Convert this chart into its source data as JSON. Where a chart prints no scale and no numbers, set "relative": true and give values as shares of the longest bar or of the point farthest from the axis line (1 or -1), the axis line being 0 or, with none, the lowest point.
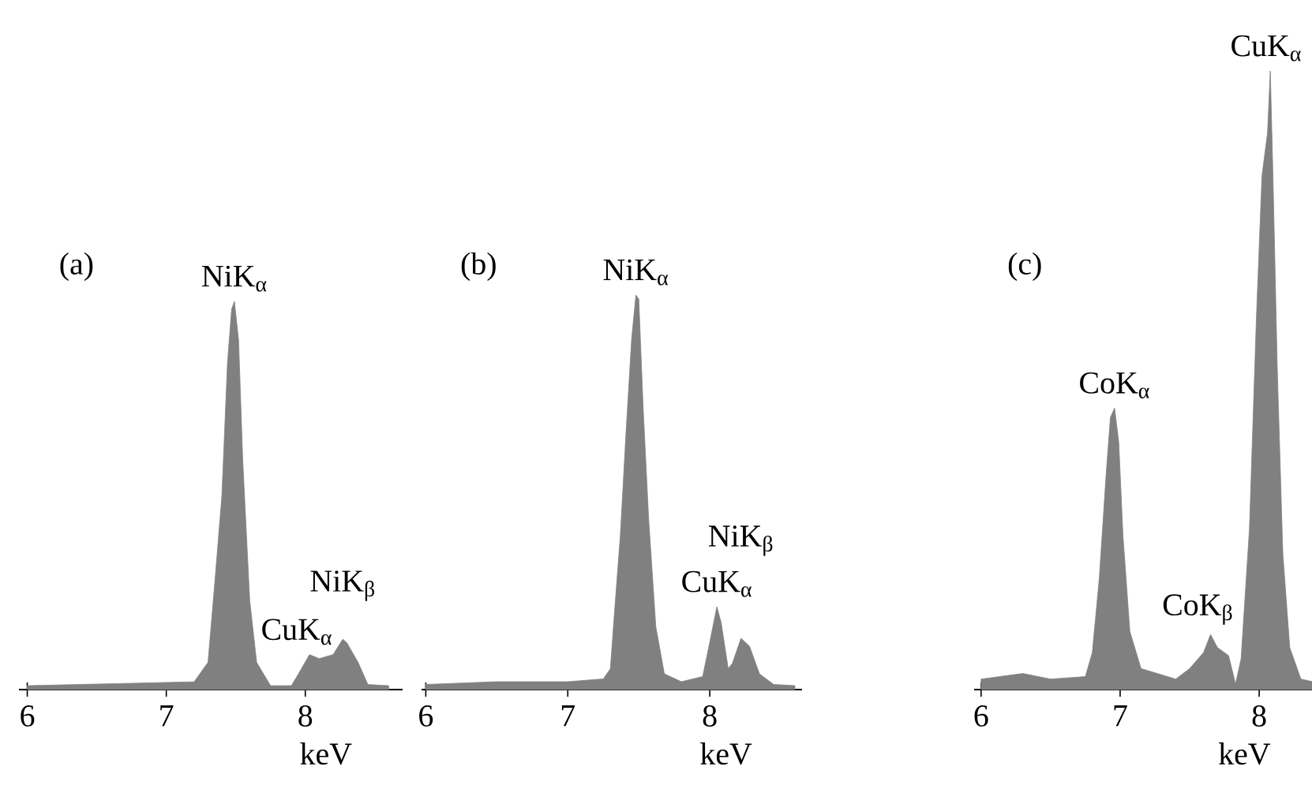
{
  "chart_data": [
    {
      "type": "area",
      "title": "(a)",
      "xlabel": "keV",
      "relative": true,
      "color": "#808080",
      "xlim": [
        5.94,
        8.7
      ],
      "xticks": [
        6,
        7,
        8
      ],
      "x": [
        6.0,
        7.2,
        7.3,
        7.35,
        7.4,
        7.44,
        7.47,
        7.49,
        7.52,
        7.55,
        7.6,
        7.65,
        7.75,
        7.9,
        7.95,
        8.03,
        8.1,
        8.2,
        8.27,
        8.3,
        8.38,
        8.45,
        8.6
      ],
      "values": [
        0.01,
        0.02,
        0.07,
        0.28,
        0.5,
        0.84,
        0.98,
        1.0,
        0.9,
        0.59,
        0.23,
        0.07,
        0.01,
        0.01,
        0.04,
        0.09,
        0.08,
        0.09,
        0.13,
        0.12,
        0.07,
        0.013,
        0.01
      ],
      "annotations": [
        {
          "text": "NiK$_{α}$",
          "x": 7.49,
          "y": 1.0
        },
        {
          "text": "CuK$_{α}$",
          "x": 8.03,
          "y": 0.09
        },
        {
          "text": "NiK$_{β}$",
          "x": 8.27,
          "y": 0.13
        }
      ]
    },
    {
      "type": "area",
      "title": "(b)",
      "xlabel": "keV",
      "relative": true,
      "color": "#808080",
      "xlim": [
        5.97,
        8.65
      ],
      "xticks": [
        6,
        7,
        8
      ],
      "x": [
        6.0,
        6.5,
        7.0,
        7.25,
        7.3,
        7.33,
        7.37,
        7.41,
        7.45,
        7.48,
        7.5,
        7.53,
        7.57,
        7.62,
        7.68,
        7.8,
        7.95,
        8.0,
        8.05,
        8.08,
        8.13,
        8.16,
        8.22,
        8.28,
        8.35,
        8.45,
        8.6
      ],
      "values": [
        0.013,
        0.02,
        0.02,
        0.027,
        0.053,
        0.2,
        0.39,
        0.65,
        0.89,
        1.0,
        0.99,
        0.72,
        0.43,
        0.16,
        0.04,
        0.02,
        0.033,
        0.12,
        0.21,
        0.17,
        0.053,
        0.067,
        0.13,
        0.11,
        0.04,
        0.013,
        0.01
      ],
      "annotations": [
        {
          "text": "NiK$_{α}$",
          "x": 7.48,
          "y": 1.0
        },
        {
          "text": "CuK$_{α}$",
          "x": 8.05,
          "y": 0.21
        },
        {
          "text": "NiK$_{β}$",
          "x": 8.22,
          "y": 0.13
        }
      ]
    },
    {
      "type": "area",
      "title": "(c)",
      "xlabel": "keV",
      "relative": true,
      "color": "#808080",
      "xlim": [
        5.95,
        8.38
      ],
      "xticks": [
        6,
        7,
        8
      ],
      "x": [
        6.0,
        6.3,
        6.5,
        6.75,
        6.8,
        6.85,
        6.9,
        6.93,
        6.96,
        6.99,
        7.02,
        7.07,
        7.15,
        7.4,
        7.5,
        7.6,
        7.65,
        7.7,
        7.78,
        7.83,
        7.87,
        7.93,
        7.98,
        8.02,
        8.06,
        8.08,
        8.1,
        8.13,
        8.17,
        8.22,
        8.3,
        8.38
      ],
      "values": [
        0.017,
        0.026,
        0.017,
        0.021,
        0.06,
        0.18,
        0.35,
        0.44,
        0.455,
        0.4,
        0.25,
        0.094,
        0.034,
        0.017,
        0.034,
        0.06,
        0.089,
        0.068,
        0.055,
        0.009,
        0.05,
        0.26,
        0.6,
        0.83,
        0.9,
        1.0,
        0.82,
        0.52,
        0.22,
        0.068,
        0.017,
        0.013
      ],
      "annotations": [
        {
          "text": "CoK$_{α}$",
          "x": 6.96,
          "y": 0.455
        },
        {
          "text": "CoK$_{β}$",
          "x": 7.65,
          "y": 0.089
        },
        {
          "text": "CuK$_{α}$",
          "x": 8.08,
          "y": 1.0
        }
      ]
    }
  ]
}
